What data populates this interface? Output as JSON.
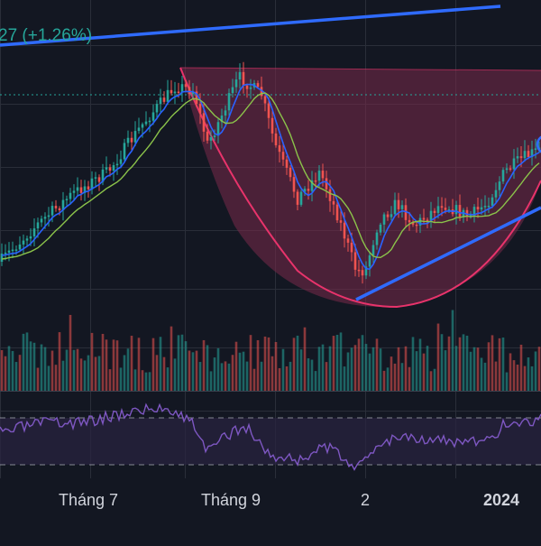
{
  "header": {
    "change_text": "27 (+1.26%)",
    "color": "#26a69a"
  },
  "x_axis": {
    "labels": [
      "Tháng 7",
      "Tháng 9",
      "2",
      "2024"
    ],
    "bold_label": "2024"
  },
  "colors": {
    "background": "#131722",
    "grid": "#2a2e39",
    "up": "#26a69a",
    "down": "#ef5350",
    "ma_fast": "#2962ff",
    "ma_slow": "#8bc34a",
    "trendline": "#2f6bff",
    "cup_fill": "#7a2a4a",
    "cup_stroke": "#e8336b",
    "rsi_line": "#7e57c2",
    "rsi_band": "#2a2440",
    "dashed_price_line": "#26a69a"
  },
  "chart_data": {
    "type": "candlestick",
    "title": "",
    "x": [
      "Tháng 7",
      "Tháng 9",
      "2",
      "2024"
    ],
    "series": [
      {
        "name": "",
        "kind": "ohlc-trend",
        "shape": "rise to a peak, sharp drop into a rounded bottom, then recovery (cup pattern)"
      }
    ],
    "annotations": [
      "rising trendline",
      "cup/rounding-bottom shaded region",
      "support trendline from bottom",
      "RSI panel with overbought/oversold dashed levels"
    ],
    "grid": true,
    "panels": [
      "price",
      "volume",
      "rsi"
    ]
  }
}
